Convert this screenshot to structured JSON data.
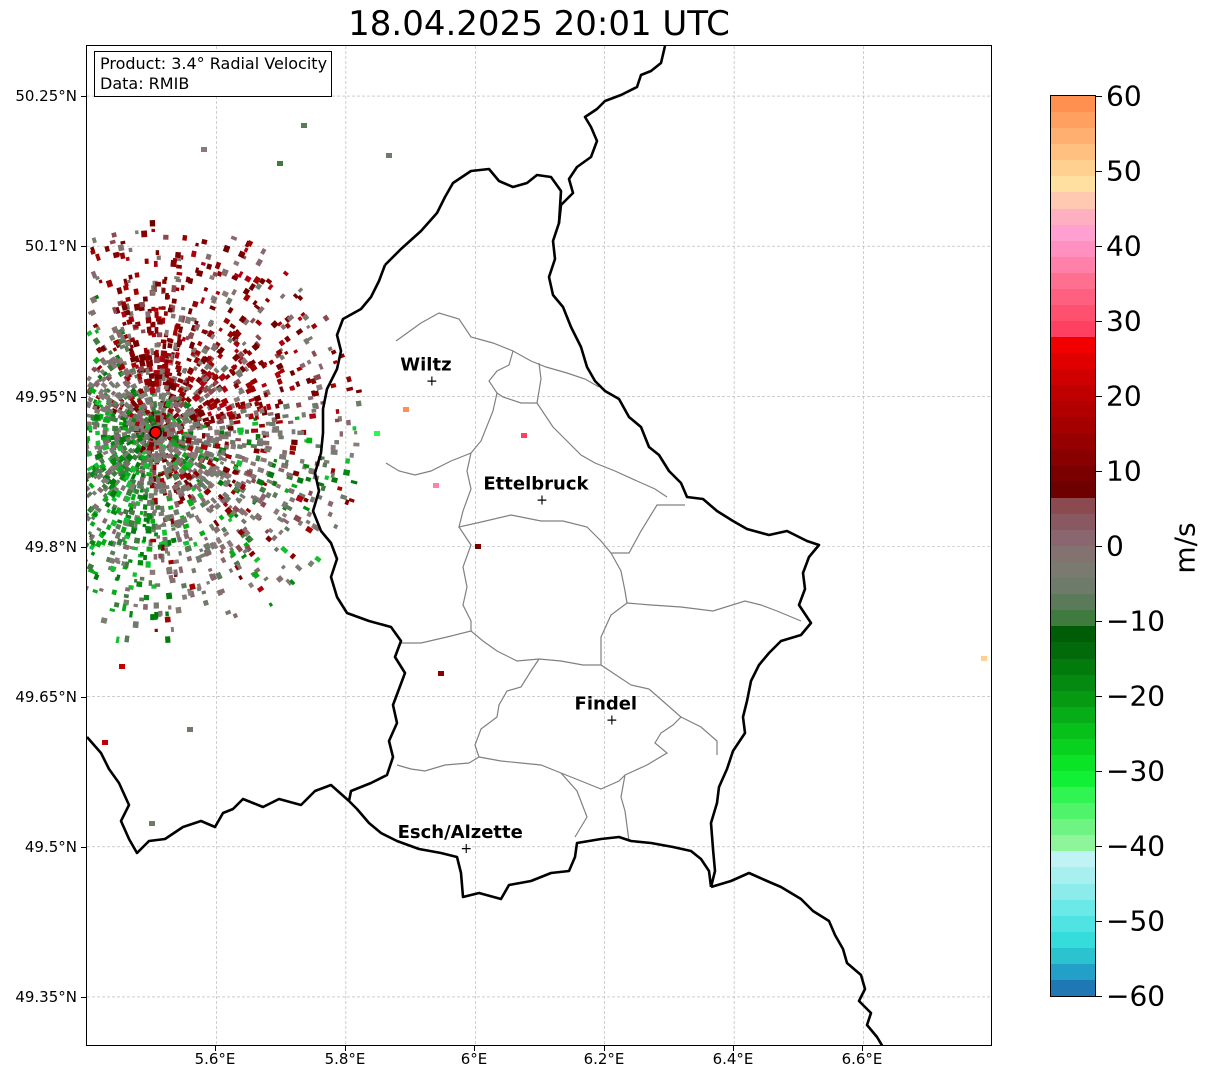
{
  "title": "18.04.2025 20:01 UTC",
  "info": {
    "product": "Product: 3.4° Radial Velocity",
    "data": "Data: RMIB"
  },
  "axes": {
    "lat_ticks": [
      "50.25°N",
      "50.1°N",
      "49.95°N",
      "49.8°N",
      "49.65°N",
      "49.5°N",
      "49.35°N"
    ],
    "lon_ticks": [
      "5.6°E",
      "5.8°E",
      "6°E",
      "6.2°E",
      "6.4°E",
      "6.6°E"
    ]
  },
  "map": {
    "extent": {
      "lon_min": 5.4,
      "lon_max": 6.8,
      "lat_min": 49.3,
      "lat_max": 50.3
    },
    "radar_site": {
      "lon": 5.506,
      "lat": 49.914
    },
    "cities": [
      {
        "name": "Wiltz",
        "lon": 5.933,
        "lat": 49.966
      },
      {
        "name": "Ettelbruck",
        "lon": 6.103,
        "lat": 49.847
      },
      {
        "name": "Findel",
        "lon": 6.211,
        "lat": 49.627
      },
      {
        "name": "Esch/Alzette",
        "lon": 5.986,
        "lat": 49.499
      }
    ],
    "grid": true
  },
  "colorbar": {
    "label": "m/s",
    "min": -60,
    "max": 60,
    "ticks": [
      "60",
      "50",
      "40",
      "30",
      "20",
      "10",
      "0",
      "−10",
      "−20",
      "−30",
      "−40",
      "−50",
      "−60"
    ],
    "colors_low_to_high": [
      "#1f77b4",
      "#23a0c8",
      "#2bc3d0",
      "#35dcdc",
      "#4fe3e3",
      "#6be8e8",
      "#8cecec",
      "#a8f0f0",
      "#c0f4f4",
      "#8ef59a",
      "#6ff383",
      "#4ff46b",
      "#2ff452",
      "#12f035",
      "#0ae326",
      "#08d21e",
      "#07c01a",
      "#06ad16",
      "#059a12",
      "#048a10",
      "#037a0c",
      "#026a0a",
      "#015c08",
      "#3f7a3f",
      "#5a7a5a",
      "#6e7a6a",
      "#7a7a70",
      "#847270",
      "#8a6670",
      "#8a5860",
      "#8a4a50",
      "#6e0000",
      "#7a0000",
      "#880000",
      "#960000",
      "#a40000",
      "#b20000",
      "#c00000",
      "#d00000",
      "#e00000",
      "#f20000",
      "#ff4060",
      "#ff5070",
      "#ff6080",
      "#ff7090",
      "#ff80a8",
      "#ff90c0",
      "#ffa0d0",
      "#ffb0c0",
      "#ffc8b0",
      "#ffe0a0",
      "#ffd090",
      "#ffc080",
      "#ffb070",
      "#ffa060",
      "#ff9050"
    ]
  }
}
